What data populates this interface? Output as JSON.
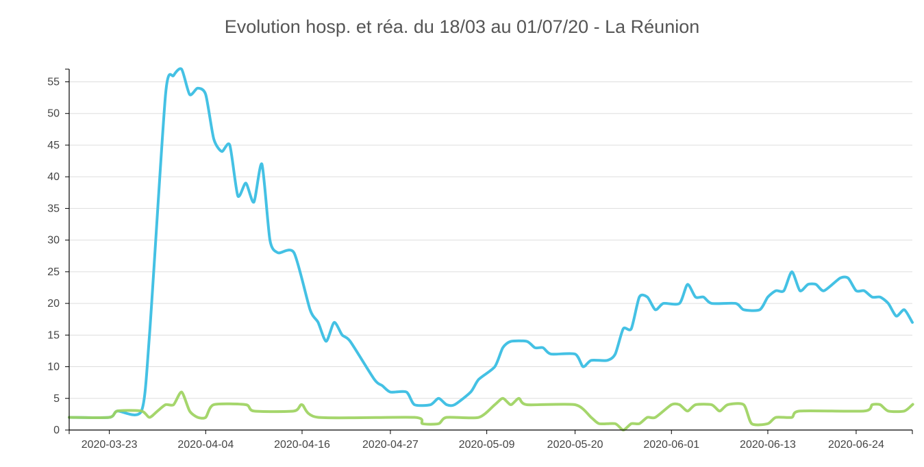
{
  "chart_data": {
    "type": "line",
    "title": "Evolution hosp. et réa. du 18/03 au 01/07/20 - La Réunion",
    "xlabel": "",
    "ylabel": "",
    "x_start": "2020-03-18",
    "x_end": "2020-07-01",
    "x_ticks": [
      "2020-03-23",
      "2020-04-04",
      "2020-04-16",
      "2020-04-27",
      "2020-05-09",
      "2020-05-20",
      "2020-06-01",
      "2020-06-13",
      "2020-06-24"
    ],
    "ylim": [
      0,
      57
    ],
    "y_ticks": [
      0,
      5,
      10,
      15,
      20,
      25,
      30,
      35,
      40,
      45,
      50,
      55
    ],
    "grid": "horizontal",
    "legend": "none",
    "series": [
      {
        "color": "#44c1e4",
        "points": [
          [
            "2020-03-18",
            2
          ],
          [
            "2020-03-23",
            2
          ],
          [
            "2020-03-24",
            3
          ],
          [
            "2020-03-27",
            3
          ],
          [
            "2020-03-28",
            15
          ],
          [
            "2020-03-30",
            53
          ],
          [
            "2020-03-31",
            56
          ],
          [
            "2020-04-01",
            57
          ],
          [
            "2020-04-02",
            53
          ],
          [
            "2020-04-03",
            54
          ],
          [
            "2020-04-04",
            53
          ],
          [
            "2020-04-05",
            46
          ],
          [
            "2020-04-06",
            44
          ],
          [
            "2020-04-07",
            45
          ],
          [
            "2020-04-08",
            37
          ],
          [
            "2020-04-09",
            39
          ],
          [
            "2020-04-10",
            36
          ],
          [
            "2020-04-11",
            42
          ],
          [
            "2020-04-12",
            30
          ],
          [
            "2020-04-13",
            28
          ],
          [
            "2020-04-15",
            28
          ],
          [
            "2020-04-17",
            19
          ],
          [
            "2020-04-18",
            17
          ],
          [
            "2020-04-19",
            14
          ],
          [
            "2020-04-20",
            17
          ],
          [
            "2020-04-21",
            15
          ],
          [
            "2020-04-22",
            14
          ],
          [
            "2020-04-25",
            8
          ],
          [
            "2020-04-26",
            7
          ],
          [
            "2020-04-27",
            6
          ],
          [
            "2020-04-29",
            6
          ],
          [
            "2020-04-30",
            4
          ],
          [
            "2020-05-02",
            4
          ],
          [
            "2020-05-03",
            5
          ],
          [
            "2020-05-04",
            4
          ],
          [
            "2020-05-05",
            4
          ],
          [
            "2020-05-07",
            6
          ],
          [
            "2020-05-08",
            8
          ],
          [
            "2020-05-10",
            10
          ],
          [
            "2020-05-11",
            13
          ],
          [
            "2020-05-12",
            14
          ],
          [
            "2020-05-14",
            14
          ],
          [
            "2020-05-15",
            13
          ],
          [
            "2020-05-16",
            13
          ],
          [
            "2020-05-17",
            12
          ],
          [
            "2020-05-20",
            12
          ],
          [
            "2020-05-21",
            10
          ],
          [
            "2020-05-22",
            11
          ],
          [
            "2020-05-24",
            11
          ],
          [
            "2020-05-25",
            12
          ],
          [
            "2020-05-26",
            16
          ],
          [
            "2020-05-27",
            16
          ],
          [
            "2020-05-28",
            21
          ],
          [
            "2020-05-29",
            21
          ],
          [
            "2020-05-30",
            19
          ],
          [
            "2020-05-31",
            20
          ],
          [
            "2020-06-02",
            20
          ],
          [
            "2020-06-03",
            23
          ],
          [
            "2020-06-04",
            21
          ],
          [
            "2020-06-05",
            21
          ],
          [
            "2020-06-06",
            20
          ],
          [
            "2020-06-09",
            20
          ],
          [
            "2020-06-10",
            19
          ],
          [
            "2020-06-12",
            19
          ],
          [
            "2020-06-13",
            21
          ],
          [
            "2020-06-14",
            22
          ],
          [
            "2020-06-15",
            22
          ],
          [
            "2020-06-16",
            25
          ],
          [
            "2020-06-17",
            22
          ],
          [
            "2020-06-18",
            23
          ],
          [
            "2020-06-19",
            23
          ],
          [
            "2020-06-20",
            22
          ],
          [
            "2020-06-22",
            24
          ],
          [
            "2020-06-23",
            24
          ],
          [
            "2020-06-24",
            22
          ],
          [
            "2020-06-25",
            22
          ],
          [
            "2020-06-26",
            21
          ],
          [
            "2020-06-27",
            21
          ],
          [
            "2020-06-28",
            20
          ],
          [
            "2020-06-29",
            18
          ],
          [
            "2020-06-30",
            19
          ],
          [
            "2020-07-01",
            17
          ]
        ]
      },
      {
        "color": "#9dd25f",
        "points": [
          [
            "2020-03-18",
            2
          ],
          [
            "2020-03-23",
            2
          ],
          [
            "2020-03-24",
            3
          ],
          [
            "2020-03-27",
            3
          ],
          [
            "2020-03-28",
            2
          ],
          [
            "2020-03-29",
            3
          ],
          [
            "2020-03-30",
            4
          ],
          [
            "2020-03-31",
            4
          ],
          [
            "2020-04-01",
            6
          ],
          [
            "2020-04-02",
            3
          ],
          [
            "2020-04-03",
            2
          ],
          [
            "2020-04-04",
            2
          ],
          [
            "2020-04-05",
            4
          ],
          [
            "2020-04-09",
            4
          ],
          [
            "2020-04-10",
            3
          ],
          [
            "2020-04-15",
            3
          ],
          [
            "2020-04-16",
            4
          ],
          [
            "2020-04-18",
            2
          ],
          [
            "2020-04-30",
            2
          ],
          [
            "2020-05-01",
            1
          ],
          [
            "2020-05-03",
            1
          ],
          [
            "2020-05-04",
            2
          ],
          [
            "2020-05-08",
            2
          ],
          [
            "2020-05-10",
            4
          ],
          [
            "2020-05-11",
            5
          ],
          [
            "2020-05-12",
            4
          ],
          [
            "2020-05-13",
            5
          ],
          [
            "2020-05-14",
            4
          ],
          [
            "2020-05-20",
            4
          ],
          [
            "2020-05-22",
            2
          ],
          [
            "2020-05-23",
            1
          ],
          [
            "2020-05-25",
            1
          ],
          [
            "2020-05-26",
            0
          ],
          [
            "2020-05-27",
            1
          ],
          [
            "2020-05-28",
            1
          ],
          [
            "2020-05-29",
            2
          ],
          [
            "2020-05-30",
            2
          ],
          [
            "2020-06-01",
            4
          ],
          [
            "2020-06-02",
            4
          ],
          [
            "2020-06-03",
            3
          ],
          [
            "2020-06-04",
            4
          ],
          [
            "2020-06-06",
            4
          ],
          [
            "2020-06-07",
            3
          ],
          [
            "2020-06-08",
            4
          ],
          [
            "2020-06-10",
            4
          ],
          [
            "2020-06-11",
            1
          ],
          [
            "2020-06-13",
            1
          ],
          [
            "2020-06-14",
            2
          ],
          [
            "2020-06-16",
            2
          ],
          [
            "2020-06-17",
            3
          ],
          [
            "2020-06-25",
            3
          ],
          [
            "2020-06-26",
            4
          ],
          [
            "2020-06-27",
            4
          ],
          [
            "2020-06-28",
            3
          ],
          [
            "2020-06-30",
            3
          ],
          [
            "2020-07-01",
            4
          ],
          [
            "2020-07-02",
            4
          ]
        ]
      }
    ]
  }
}
